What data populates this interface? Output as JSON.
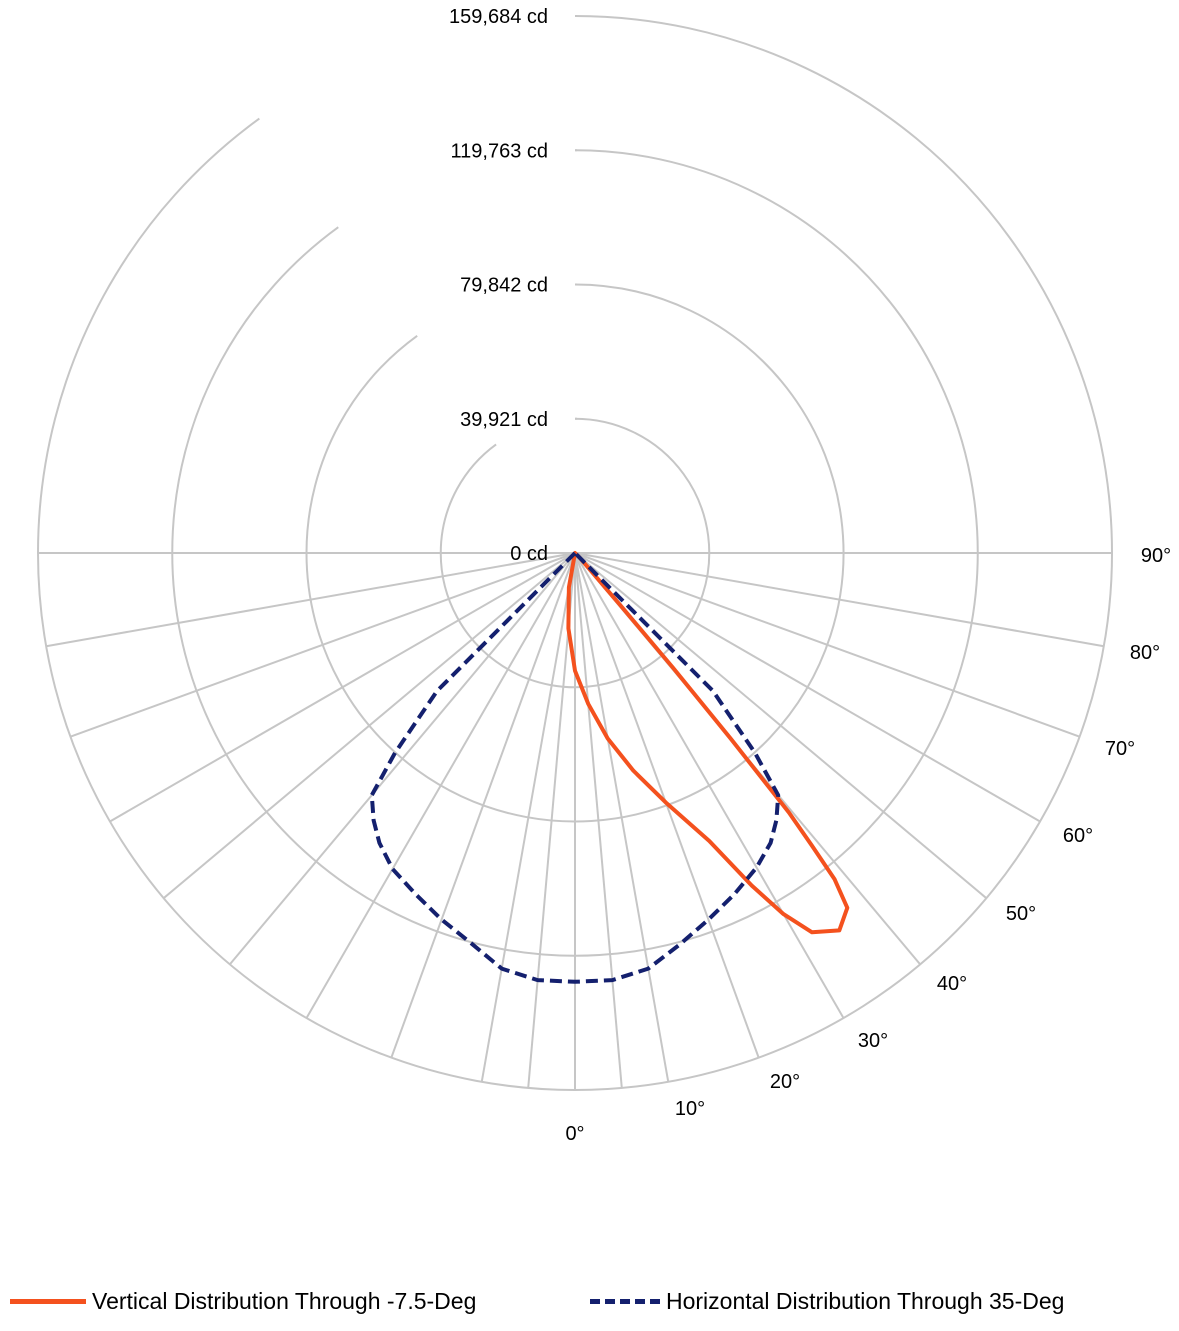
{
  "chart_data": {
    "type": "polar-line",
    "angle_unit": "deg",
    "radial_unit": "cd",
    "radial_max": 159684,
    "radial_ticks": [
      {
        "value": 0,
        "label": "0 cd"
      },
      {
        "value": 39921,
        "label": "39,921 cd"
      },
      {
        "value": 79842,
        "label": "79,842 cd"
      },
      {
        "value": 119763,
        "label": "119,763 cd"
      },
      {
        "value": 159684,
        "label": "159,684 cd"
      }
    ],
    "angle_ticks": [
      {
        "value": 0,
        "label": "0°"
      },
      {
        "value": 10,
        "label": "10°"
      },
      {
        "value": 20,
        "label": "20°"
      },
      {
        "value": 30,
        "label": "30°"
      },
      {
        "value": 40,
        "label": "40°"
      },
      {
        "value": 50,
        "label": "50°"
      },
      {
        "value": 60,
        "label": "60°"
      },
      {
        "value": 70,
        "label": "70°"
      },
      {
        "value": 80,
        "label": "80°"
      },
      {
        "value": 90,
        "label": "90°"
      }
    ],
    "spoke_angles": [
      -90,
      -80,
      -70,
      -60,
      -50,
      -40,
      -30,
      -20,
      -10,
      -5,
      0,
      5,
      10,
      20,
      30,
      40,
      50,
      60,
      70,
      80,
      90
    ],
    "grid": true,
    "legend_position": "bottom",
    "series": [
      {
        "name": "Vertical Distribution Through -7.5-Deg",
        "color": "#f4511e",
        "style": "solid",
        "points": [
          {
            "angle": -90,
            "value": 0
          },
          {
            "angle": -10,
            "value": 10400
          },
          {
            "angle": -5,
            "value": 22500
          },
          {
            "angle": 0,
            "value": 35000
          },
          {
            "angle": 5,
            "value": 45000
          },
          {
            "angle": 10,
            "value": 56000
          },
          {
            "angle": 15,
            "value": 67000
          },
          {
            "angle": 20,
            "value": 79000
          },
          {
            "angle": 25,
            "value": 94500
          },
          {
            "angle": 28,
            "value": 112000
          },
          {
            "angle": 30,
            "value": 124000
          },
          {
            "angle": 32,
            "value": 133000
          },
          {
            "angle": 35,
            "value": 137000
          },
          {
            "angle": 37.5,
            "value": 133000
          },
          {
            "angle": 38.5,
            "value": 124000
          },
          {
            "angle": 39,
            "value": 112000
          },
          {
            "angle": 39.5,
            "value": 100000
          },
          {
            "angle": 40,
            "value": 72000
          },
          {
            "angle": 40.5,
            "value": 45000
          },
          {
            "angle": 41,
            "value": 20000
          },
          {
            "angle": 45,
            "value": 2000
          },
          {
            "angle": 90,
            "value": 0
          }
        ]
      },
      {
        "name": "Horizontal Distribution Through 35-Deg",
        "color": "#14206e",
        "style": "dashed",
        "points": [
          {
            "angle": -90,
            "value": 0
          },
          {
            "angle": -45,
            "value": 58000
          },
          {
            "angle": -42,
            "value": 80000
          },
          {
            "angle": -40,
            "value": 94000
          },
          {
            "angle": -37,
            "value": 99500
          },
          {
            "angle": -34,
            "value": 104000
          },
          {
            "angle": -30,
            "value": 108500
          },
          {
            "angle": -25,
            "value": 112000
          },
          {
            "angle": -20,
            "value": 116000
          },
          {
            "angle": -15,
            "value": 120000
          },
          {
            "angle": -10,
            "value": 125500
          },
          {
            "angle": -5,
            "value": 127500
          },
          {
            "angle": 0,
            "value": 127500
          },
          {
            "angle": 5,
            "value": 127500
          },
          {
            "angle": 10,
            "value": 125500
          },
          {
            "angle": 15,
            "value": 120500
          },
          {
            "angle": 20,
            "value": 116000
          },
          {
            "angle": 25,
            "value": 112000
          },
          {
            "angle": 30,
            "value": 108000
          },
          {
            "angle": 34,
            "value": 104000
          },
          {
            "angle": 37,
            "value": 99500
          },
          {
            "angle": 40,
            "value": 94000
          },
          {
            "angle": 42,
            "value": 80000
          },
          {
            "angle": 45,
            "value": 58000
          },
          {
            "angle": 90,
            "value": 0
          }
        ]
      }
    ]
  }
}
